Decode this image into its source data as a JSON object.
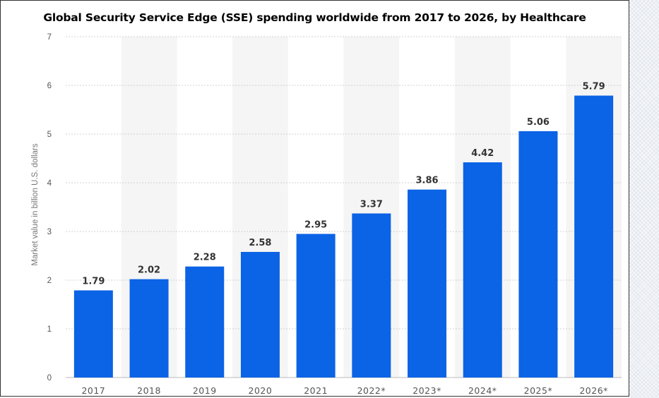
{
  "chart_data": {
    "type": "bar",
    "title": "Global Security Service Edge (SSE) spending worldwide from 2017 to 2026, by Healthcare",
    "ylabel": "Market value in billion U.S. dollars",
    "xlabel": "",
    "categories": [
      "2017",
      "2018",
      "2019",
      "2020",
      "2021",
      "2022*",
      "2023*",
      "2024*",
      "2025*",
      "2026*"
    ],
    "values": [
      1.79,
      2.02,
      2.28,
      2.58,
      2.95,
      3.37,
      3.86,
      4.42,
      5.06,
      5.79
    ],
    "value_labels": [
      "1.79",
      "2.02",
      "2.28",
      "2.58",
      "2.95",
      "3.37",
      "3.86",
      "4.42",
      "5.06",
      "5.79"
    ],
    "ylim": [
      0,
      7
    ],
    "yticks": [
      "0",
      "1",
      "2",
      "3",
      "4",
      "5",
      "6",
      "7"
    ],
    "grid": true,
    "bar_color": "#0b63e5",
    "alt_band_color": "#f5f5f5"
  }
}
